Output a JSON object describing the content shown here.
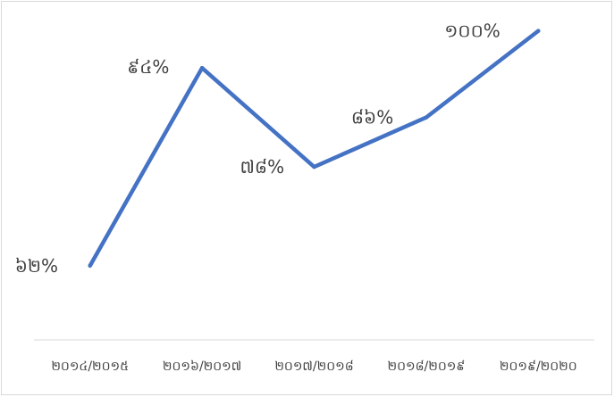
{
  "chart_data": {
    "type": "line",
    "categories": [
      "២០១៤/២០១៥",
      "២០១៦/២០១៧",
      "២០១៧/២០១៨",
      "២០១៨/២០១៩",
      "២០១៩/២០២០"
    ],
    "values": [
      62,
      94,
      78,
      86,
      100
    ],
    "data_labels": [
      "៦២%",
      "៩៤%",
      "៧៨%",
      "៨៦%",
      "១០០%"
    ],
    "ylim": [
      50,
      105
    ],
    "grid": false,
    "legend": "none",
    "line_color": "#4472c4"
  }
}
